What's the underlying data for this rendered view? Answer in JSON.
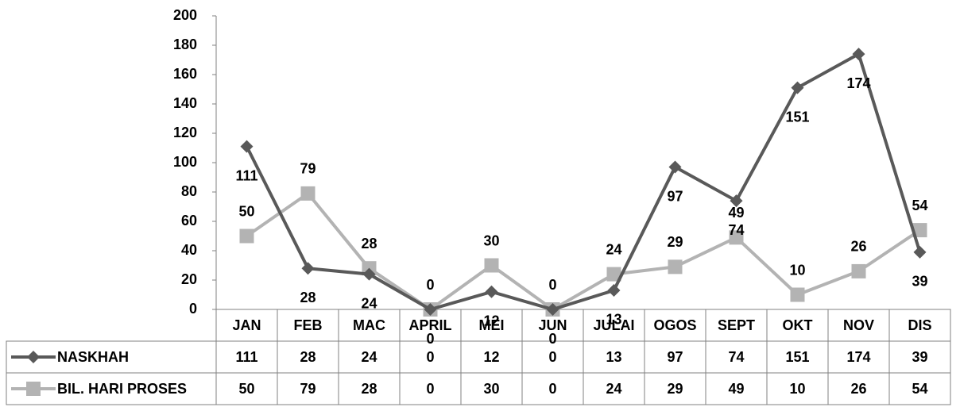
{
  "chart_data": {
    "type": "line",
    "categories": [
      "JAN",
      "FEB",
      "MAC",
      "APRIL",
      "MEI",
      "JUN",
      "JULAI",
      "OGOS",
      "SEPT",
      "OKT",
      "NOV",
      "DIS"
    ],
    "series": [
      {
        "name": "NASKHAH",
        "color": "#595959",
        "marker": "diamond",
        "values": [
          111,
          28,
          24,
          0,
          12,
          0,
          13,
          97,
          74,
          151,
          174,
          39
        ]
      },
      {
        "name": "BIL. HARI PROSES",
        "color": "#b3b3b3",
        "marker": "square",
        "values": [
          50,
          79,
          28,
          0,
          30,
          0,
          24,
          29,
          49,
          10,
          26,
          54
        ]
      }
    ],
    "ylim": [
      0,
      200
    ],
    "yticks": [
      0,
      20,
      40,
      60,
      80,
      100,
      120,
      140,
      160,
      180,
      200
    ],
    "data_table": true
  }
}
